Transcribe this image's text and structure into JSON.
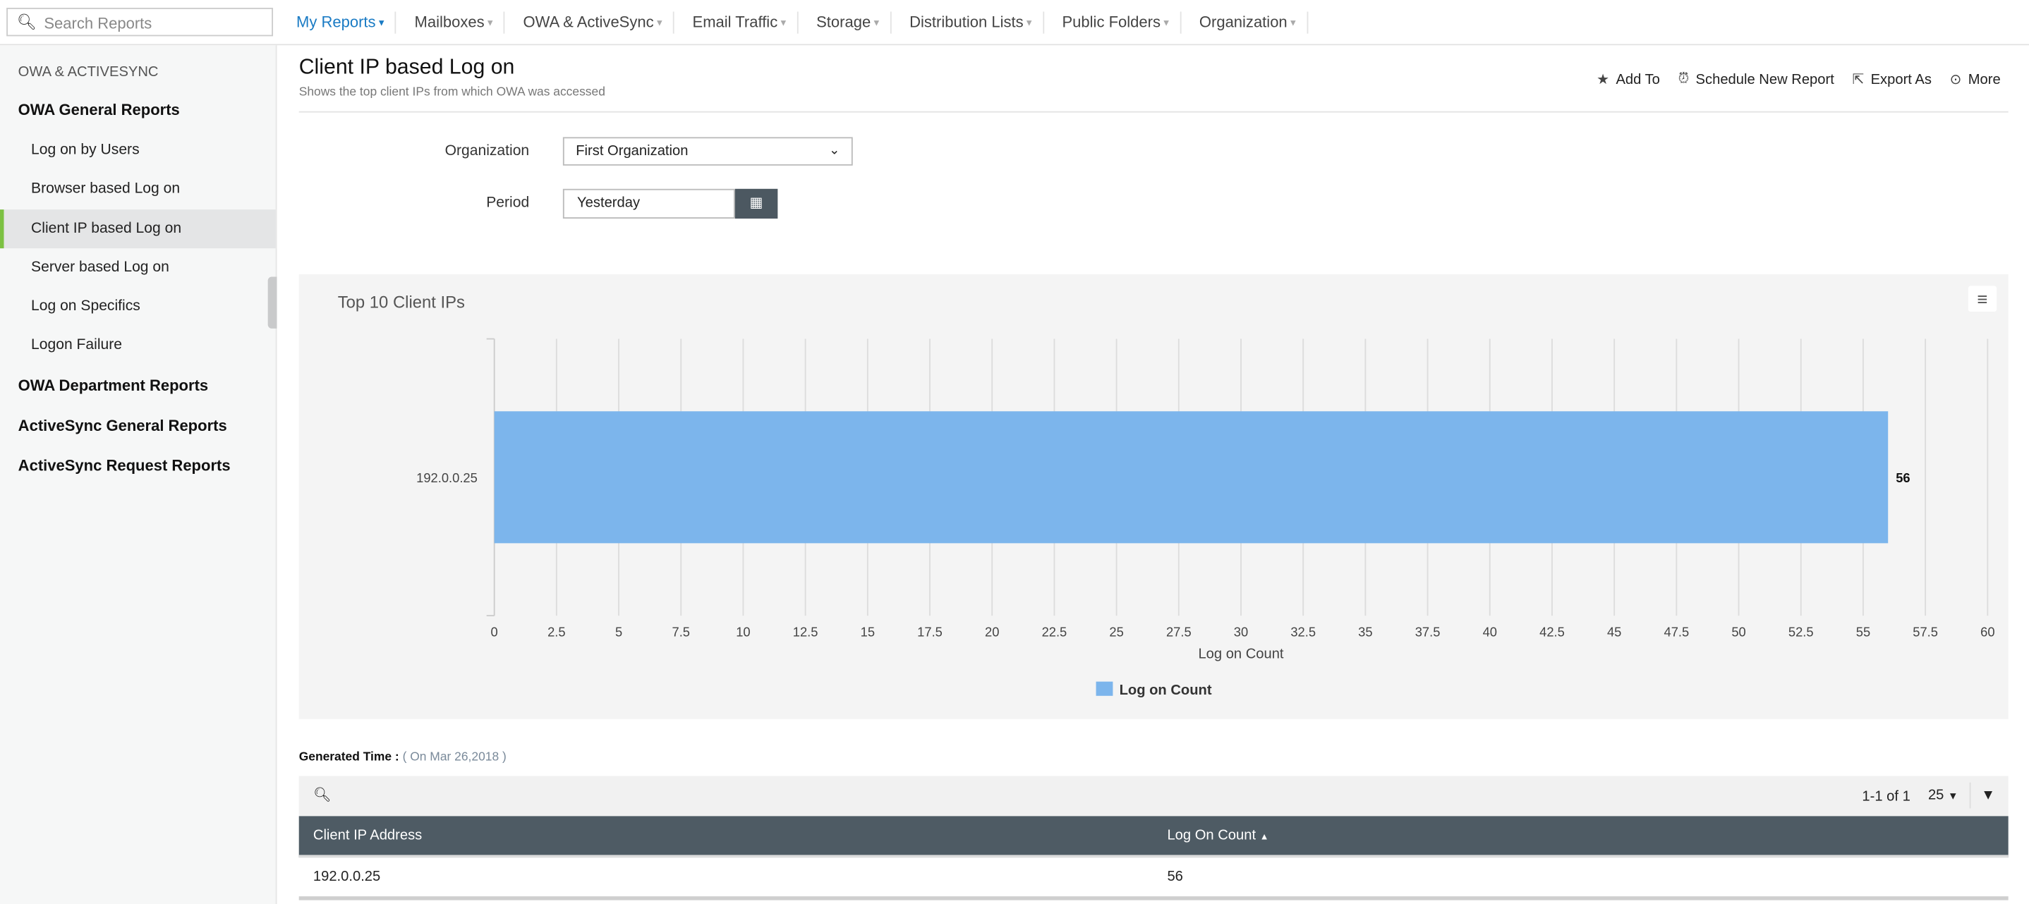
{
  "search": {
    "placeholder": "Search Reports"
  },
  "nav": [
    {
      "label": "My Reports",
      "active": true
    },
    {
      "label": "Mailboxes"
    },
    {
      "label": "OWA & ActiveSync"
    },
    {
      "label": "Email Traffic"
    },
    {
      "label": "Storage"
    },
    {
      "label": "Distribution Lists"
    },
    {
      "label": "Public Folders"
    },
    {
      "label": "Organization"
    }
  ],
  "sidebar": {
    "section": "OWA & ACTIVESYNC",
    "groups": [
      "OWA General Reports",
      "OWA Department Reports",
      "ActiveSync General Reports",
      "ActiveSync Request Reports"
    ],
    "items": [
      "Log on by Users",
      "Browser based Log on",
      "Client IP based Log on",
      "Server based Log on",
      "Log on Specifics",
      "Logon Failure"
    ],
    "active_item": "Client IP based Log on"
  },
  "page": {
    "title": "Client IP based Log on",
    "subtitle": "Shows the top client IPs from which OWA was accessed"
  },
  "actions": {
    "add_to": "Add To",
    "schedule": "Schedule New Report",
    "export": "Export As",
    "more": "More"
  },
  "filters": {
    "org_label": "Organization",
    "org_value": "First Organization",
    "period_label": "Period",
    "period_value": "Yesterday"
  },
  "chart_data": {
    "type": "bar",
    "orientation": "horizontal",
    "title": "Top 10 Client IPs",
    "categories": [
      "192.0.0.25"
    ],
    "series": [
      {
        "name": "Log on Count",
        "values": [
          56
        ],
        "color": "#7cb5ec"
      }
    ],
    "xlabel": "Log on Count",
    "xlim": [
      0,
      60
    ],
    "ticks": [
      "0",
      "2.5",
      "5",
      "7.5",
      "10",
      "12.5",
      "15",
      "17.5",
      "20",
      "22.5",
      "25",
      "27.5",
      "30",
      "32.5",
      "35",
      "37.5",
      "40",
      "42.5",
      "45",
      "47.5",
      "50",
      "52.5",
      "55",
      "57.5",
      "60"
    ],
    "grid": true,
    "legend": "bottom",
    "data_labels": true
  },
  "generated": {
    "label": "Generated Time :",
    "value": "( On Mar 26,2018 )"
  },
  "table": {
    "pagination": "1-1 of 1",
    "page_size": "25",
    "columns": [
      "Client IP Address",
      "Log On Count"
    ],
    "rows": [
      [
        "192.0.0.25",
        "56"
      ]
    ]
  }
}
